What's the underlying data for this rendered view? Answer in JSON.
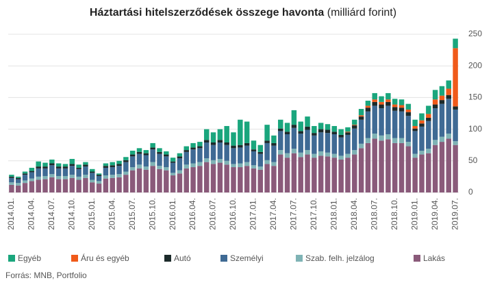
{
  "chart_data": {
    "type": "stacked_bar",
    "title": "Háztartási hitelszerződések összege havonta",
    "subtitle": "(milliárd forint)",
    "source": "Forrás: MNB, Portfolio",
    "categories": [
      "2014.01.",
      null,
      null,
      "2014.04.",
      null,
      null,
      "2014.07.",
      null,
      null,
      "2014.10.",
      null,
      null,
      "2015.01.",
      null,
      null,
      "2015.04.",
      null,
      null,
      "2015.07.",
      null,
      null,
      "2015.10.",
      null,
      null,
      "2016.01.",
      null,
      null,
      "2016.04.",
      null,
      null,
      "2016.07.",
      null,
      null,
      "2016.10.",
      null,
      null,
      "2017.01.",
      null,
      null,
      "2017.04.",
      null,
      null,
      "2017.07.",
      null,
      null,
      "2017.10.",
      null,
      null,
      "2018.01.",
      null,
      null,
      "2018.04.",
      null,
      null,
      "2018.07.",
      null,
      null,
      "2018.10.",
      null,
      null,
      "2019.01.",
      null,
      null,
      "2019.04.",
      null,
      null,
      "2019.07."
    ],
    "series": [
      {
        "name": "Egyéb",
        "color": "#1aa67d",
        "values": [
          3,
          2,
          3,
          5,
          8,
          6,
          6,
          5,
          4,
          8,
          5,
          4,
          4,
          2,
          4,
          5,
          5,
          5,
          6,
          6,
          5,
          7,
          6,
          5,
          6,
          5,
          6,
          7,
          7,
          17,
          16,
          17,
          26,
          21,
          40,
          34,
          14,
          11,
          25,
          12,
          14,
          14,
          23,
          15,
          16,
          11,
          10,
          9,
          9,
          9,
          7,
          8,
          10,
          8,
          10,
          9,
          10,
          9,
          9,
          9,
          10,
          11,
          13,
          15,
          15,
          13,
          15
        ]
      },
      {
        "name": "Áru és egyéb",
        "color": "#f05a1a",
        "values": [
          0,
          0,
          0,
          0,
          0,
          0,
          0,
          0,
          0,
          0,
          0,
          0,
          0,
          0,
          0,
          0,
          0,
          0,
          0,
          0,
          0,
          0,
          0,
          0,
          0,
          0,
          0,
          0,
          0,
          0,
          0,
          0,
          0,
          0,
          0,
          0,
          0,
          0,
          0,
          0,
          0,
          0,
          0,
          0,
          0,
          0,
          0,
          0,
          0,
          0,
          1,
          1,
          2,
          3,
          4,
          4,
          4,
          4,
          4,
          4,
          4,
          5,
          6,
          8,
          7,
          10,
          92
        ]
      },
      {
        "name": "Autó",
        "color": "#1c2a2a",
        "values": [
          2,
          2,
          2,
          2,
          3,
          3,
          3,
          3,
          3,
          3,
          2,
          3,
          2,
          2,
          3,
          3,
          3,
          3,
          3,
          3,
          3,
          3,
          3,
          3,
          2,
          3,
          3,
          3,
          3,
          4,
          4,
          4,
          4,
          4,
          4,
          4,
          3,
          3,
          4,
          4,
          4,
          4,
          5,
          4,
          5,
          4,
          5,
          5,
          4,
          4,
          4,
          5,
          5,
          6,
          6,
          6,
          6,
          6,
          6,
          6,
          4,
          5,
          5,
          6,
          6,
          6,
          5
        ]
      },
      {
        "name": "Személyi",
        "color": "#3f6a94",
        "values": [
          7,
          6,
          9,
          10,
          13,
          12,
          14,
          12,
          12,
          14,
          12,
          13,
          11,
          8,
          12,
          12,
          13,
          15,
          17,
          17,
          18,
          20,
          19,
          17,
          16,
          19,
          20,
          22,
          22,
          25,
          24,
          26,
          25,
          25,
          25,
          26,
          22,
          20,
          27,
          26,
          30,
          30,
          33,
          30,
          32,
          29,
          30,
          31,
          31,
          29,
          30,
          34,
          38,
          42,
          44,
          43,
          45,
          43,
          42,
          41,
          36,
          38,
          44,
          50,
          52,
          55,
          50
        ]
      },
      {
        "name": "Szab. felh. jelzálog",
        "color": "#7fb3b5",
        "values": [
          4,
          4,
          4,
          4,
          5,
          5,
          5,
          5,
          5,
          5,
          5,
          5,
          4,
          4,
          5,
          5,
          5,
          5,
          5,
          6,
          5,
          6,
          5,
          5,
          4,
          5,
          6,
          6,
          6,
          6,
          6,
          6,
          6,
          5,
          6,
          6,
          5,
          5,
          6,
          6,
          7,
          7,
          7,
          7,
          7,
          6,
          7,
          6,
          6,
          6,
          6,
          7,
          7,
          8,
          8,
          8,
          8,
          8,
          8,
          7,
          6,
          6,
          7,
          8,
          8,
          8,
          6
        ]
      },
      {
        "name": "Lakás",
        "color": "#8a5a7a",
        "values": [
          12,
          11,
          15,
          18,
          20,
          21,
          24,
          21,
          21,
          23,
          20,
          23,
          16,
          14,
          22,
          23,
          24,
          28,
          35,
          38,
          36,
          42,
          37,
          35,
          27,
          30,
          38,
          40,
          42,
          48,
          45,
          47,
          44,
          40,
          40,
          42,
          38,
          36,
          45,
          42,
          60,
          55,
          62,
          56,
          60,
          55,
          58,
          57,
          55,
          52,
          55,
          60,
          70,
          78,
          85,
          82,
          84,
          78,
          78,
          73,
          55,
          60,
          62,
          75,
          80,
          85,
          75
        ]
      }
    ],
    "ylim": [
      0,
      250
    ],
    "yticks": [
      0,
      50,
      100,
      150,
      200,
      250
    ],
    "grid": true
  }
}
